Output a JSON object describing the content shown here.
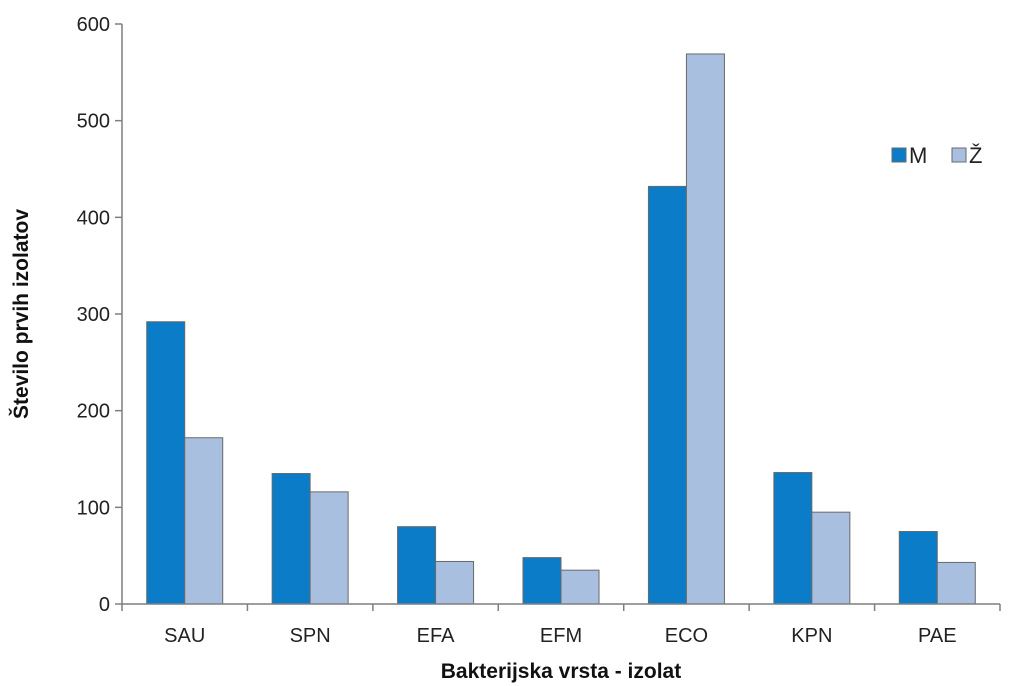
{
  "chart_data": {
    "type": "bar",
    "title": "",
    "xlabel": "Bakterijska vrsta - izolat",
    "ylabel": "Število prvih izolatov",
    "categories": [
      "SAU",
      "SPN",
      "EFA",
      "EFM",
      "ECO",
      "KPN",
      "PAE"
    ],
    "series": [
      {
        "name": "M",
        "color": "#0a7cc8",
        "values": [
          292,
          135,
          80,
          48,
          432,
          136,
          75
        ]
      },
      {
        "name": "Ž",
        "color": "#a9bfe0",
        "values": [
          172,
          116,
          44,
          35,
          569,
          95,
          43
        ]
      }
    ],
    "ylim": [
      0,
      600
    ],
    "yticks": [
      "0",
      "100",
      "200",
      "300",
      "400",
      "500",
      "600"
    ],
    "grid": false,
    "legend_position": "top-right"
  }
}
